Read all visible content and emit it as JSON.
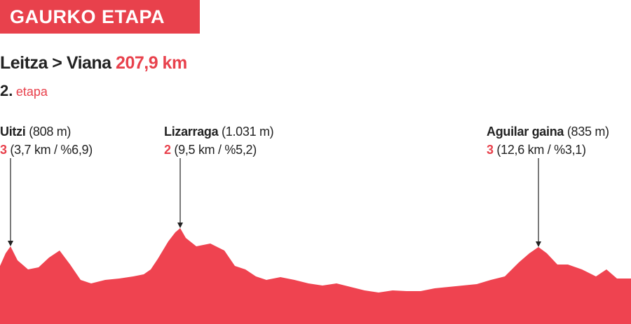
{
  "header": {
    "title": "GAURKO ETAPA"
  },
  "stage": {
    "route": "Leitza > Viana",
    "distance": "207,9 km",
    "number": "2.",
    "label": "etapa"
  },
  "climbs": [
    {
      "name": "Uitzi",
      "altitude": "(808 m)",
      "category": "3",
      "details": "(3,7 km / %6,9)"
    },
    {
      "name": "Lizarraga",
      "altitude": "(1.031 m)",
      "category": "2",
      "details": "(9,5 km / %5,2)"
    },
    {
      "name": "Aguilar gaina",
      "altitude": "(835 m)",
      "category": "3",
      "details": "(12,6 km / %3,1)"
    }
  ]
}
